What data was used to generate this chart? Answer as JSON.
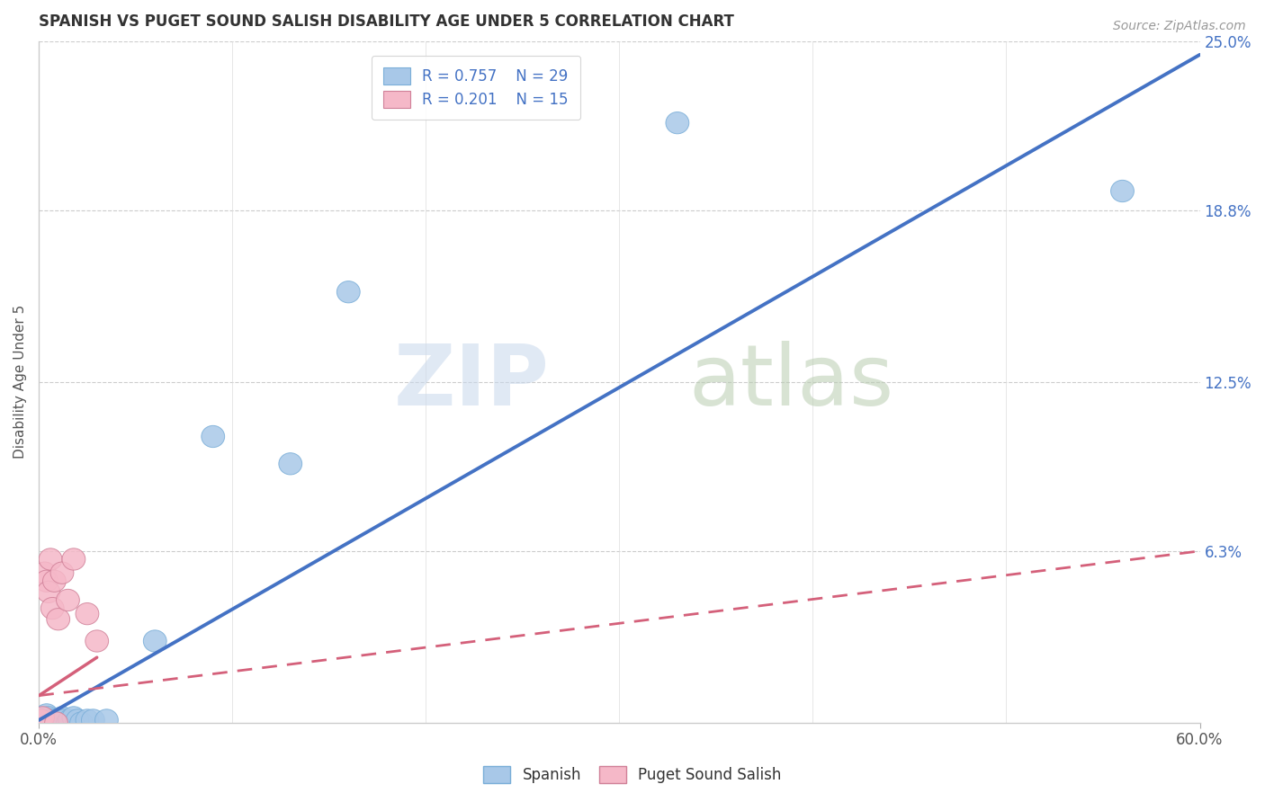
{
  "title": "SPANISH VS PUGET SOUND SALISH DISABILITY AGE UNDER 5 CORRELATION CHART",
  "source": "Source: ZipAtlas.com",
  "ylabel": "Disability Age Under 5",
  "xlim": [
    0.0,
    0.6
  ],
  "ylim": [
    0.0,
    0.25
  ],
  "ytick_positions": [
    0.0,
    0.063,
    0.125,
    0.188,
    0.25
  ],
  "ytick_labels": [
    "",
    "6.3%",
    "12.5%",
    "18.8%",
    "25.0%"
  ],
  "spanish_color": "#a8c8e8",
  "puget_color": "#f5b8c8",
  "trend_spanish_color": "#4472c4",
  "trend_puget_color": "#d4607a",
  "legend_r_spanish": "R = 0.757",
  "legend_n_spanish": "N = 29",
  "legend_r_puget": "R = 0.201",
  "legend_n_puget": "N = 15",
  "spanish_x": [
    0.001,
    0.002,
    0.003,
    0.004,
    0.004,
    0.005,
    0.005,
    0.006,
    0.007,
    0.008,
    0.009,
    0.01,
    0.011,
    0.012,
    0.013,
    0.015,
    0.016,
    0.018,
    0.02,
    0.022,
    0.025,
    0.028,
    0.035,
    0.06,
    0.09,
    0.13,
    0.16,
    0.33,
    0.56
  ],
  "spanish_y": [
    0.001,
    0.002,
    0.0,
    0.001,
    0.003,
    0.001,
    0.002,
    0.001,
    0.001,
    0.0,
    0.001,
    0.0,
    0.001,
    0.002,
    0.001,
    0.0,
    0.001,
    0.002,
    0.001,
    0.0,
    0.001,
    0.001,
    0.001,
    0.03,
    0.105,
    0.095,
    0.158,
    0.22,
    0.195
  ],
  "puget_x": [
    0.001,
    0.002,
    0.003,
    0.004,
    0.005,
    0.006,
    0.007,
    0.008,
    0.009,
    0.01,
    0.012,
    0.015,
    0.018,
    0.025,
    0.03
  ],
  "puget_y": [
    0.001,
    0.002,
    0.055,
    0.052,
    0.048,
    0.06,
    0.042,
    0.052,
    0.0,
    0.038,
    0.055,
    0.045,
    0.06,
    0.04,
    0.03
  ],
  "trend_spanish_x0": 0.0,
  "trend_spanish_y0": 0.001,
  "trend_spanish_x1": 0.6,
  "trend_spanish_y1": 0.245,
  "trend_puget_x0": 0.0,
  "trend_puget_y0": 0.01,
  "trend_puget_x1": 0.6,
  "trend_puget_y1": 0.063,
  "watermark1": "ZIP",
  "watermark2": "atlas",
  "background_color": "#ffffff",
  "grid_color": "#cccccc",
  "title_color": "#333333",
  "source_color": "#999999"
}
